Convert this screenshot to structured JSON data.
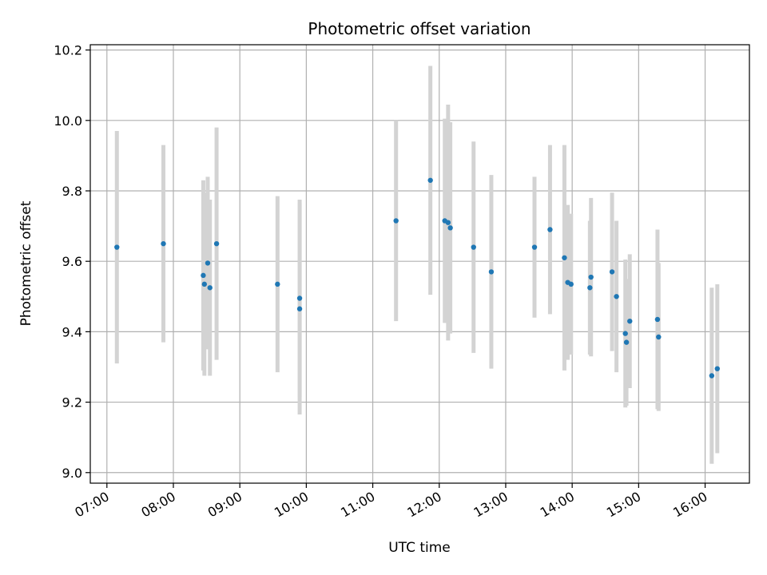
{
  "chart_data": {
    "type": "scatter",
    "title": "Photometric offset variation",
    "xlabel": "UTC time",
    "ylabel": "Photometric offset",
    "xlim": [
      "06:45",
      "16:40"
    ],
    "ylim": [
      8.97,
      10.215
    ],
    "x_ticks": [
      "07:00",
      "08:00",
      "09:00",
      "10:00",
      "11:00",
      "12:00",
      "13:00",
      "14:00",
      "15:00",
      "16:00"
    ],
    "y_ticks": [
      "9.0",
      "9.2",
      "9.4",
      "9.6",
      "9.8",
      "10.0",
      "10.2"
    ],
    "grid": true,
    "colors": {
      "points": "#1f77b4",
      "error_bars": "#d3d3d3",
      "grid": "#b0b0b0",
      "axes": "#000000"
    },
    "points": [
      {
        "x": "07:09",
        "y": 9.64,
        "err": 0.33
      },
      {
        "x": "07:51",
        "y": 9.65,
        "err": 0.28
      },
      {
        "x": "08:27",
        "y": 9.56,
        "err": 0.27
      },
      {
        "x": "08:28",
        "y": 9.535,
        "err": 0.26
      },
      {
        "x": "08:31",
        "y": 9.595,
        "err": 0.245
      },
      {
        "x": "08:33",
        "y": 9.525,
        "err": 0.25
      },
      {
        "x": "08:39",
        "y": 9.65,
        "err": 0.33
      },
      {
        "x": "09:34",
        "y": 9.535,
        "err": 0.25
      },
      {
        "x": "09:54",
        "y": 9.495,
        "err": 0.28
      },
      {
        "x": "09:54",
        "y": 9.465,
        "err": 0.3
      },
      {
        "x": "11:21",
        "y": 9.715,
        "err": 0.285
      },
      {
        "x": "11:52",
        "y": 9.83,
        "err": 0.325
      },
      {
        "x": "12:05",
        "y": 9.715,
        "err": 0.29
      },
      {
        "x": "12:08",
        "y": 9.71,
        "err": 0.335
      },
      {
        "x": "12:10",
        "y": 9.695,
        "err": 0.3
      },
      {
        "x": "12:31",
        "y": 9.64,
        "err": 0.3
      },
      {
        "x": "12:47",
        "y": 9.57,
        "err": 0.275
      },
      {
        "x": "13:26",
        "y": 9.64,
        "err": 0.2
      },
      {
        "x": "13:40",
        "y": 9.69,
        "err": 0.24
      },
      {
        "x": "13:53",
        "y": 9.61,
        "err": 0.32
      },
      {
        "x": "13:56",
        "y": 9.54,
        "err": 0.22
      },
      {
        "x": "13:59",
        "y": 9.535,
        "err": 0.2
      },
      {
        "x": "14:16",
        "y": 9.525,
        "err": 0.19
      },
      {
        "x": "14:17",
        "y": 9.555,
        "err": 0.225
      },
      {
        "x": "14:36",
        "y": 9.57,
        "err": 0.225
      },
      {
        "x": "14:40",
        "y": 9.5,
        "err": 0.215
      },
      {
        "x": "14:48",
        "y": 9.395,
        "err": 0.21
      },
      {
        "x": "14:49",
        "y": 9.37,
        "err": 0.18
      },
      {
        "x": "14:52",
        "y": 9.43,
        "err": 0.19
      },
      {
        "x": "15:17",
        "y": 9.435,
        "err": 0.255
      },
      {
        "x": "15:18",
        "y": 9.385,
        "err": 0.21
      },
      {
        "x": "16:06",
        "y": 9.275,
        "err": 0.25
      },
      {
        "x": "16:11",
        "y": 9.295,
        "err": 0.24
      }
    ]
  }
}
